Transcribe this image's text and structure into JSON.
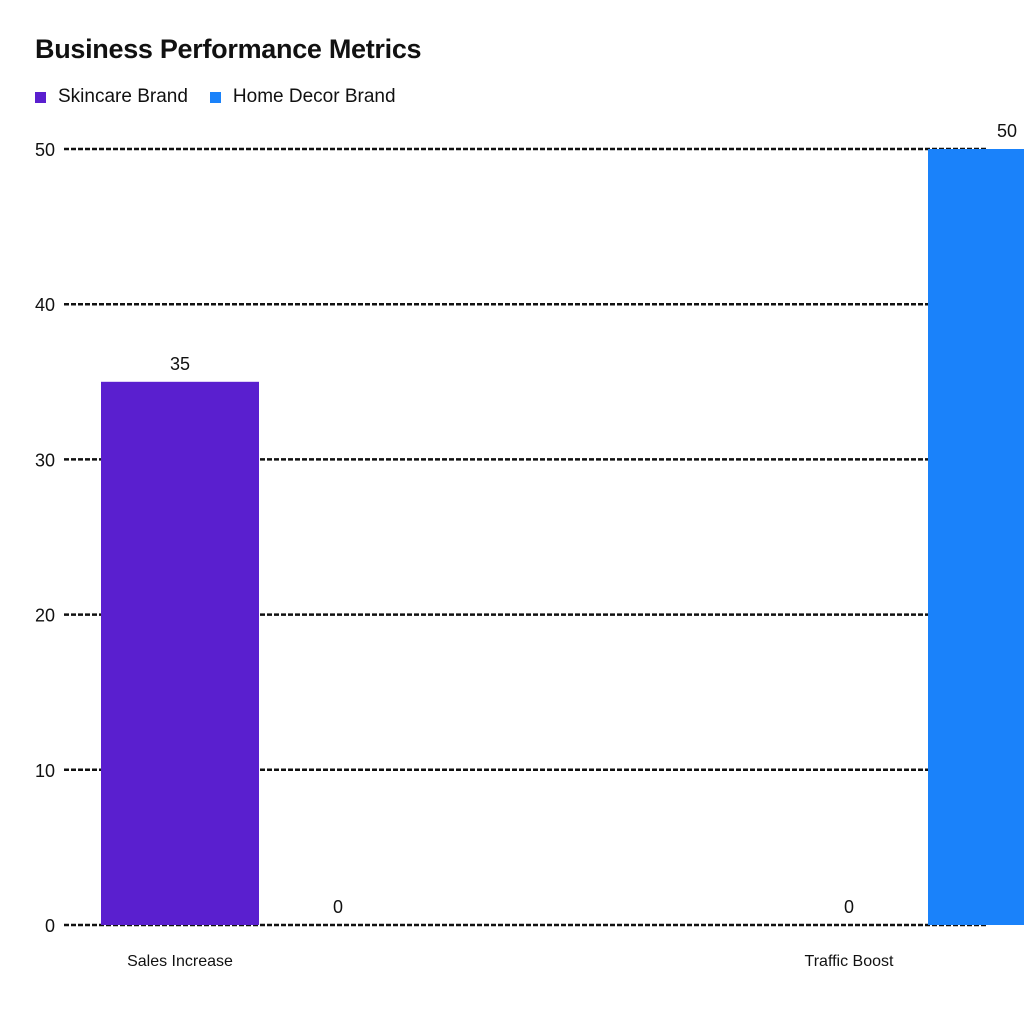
{
  "colors": {
    "skincare": "#5a1fcf",
    "home_decor": "#1a82fa",
    "gridline": "#111111",
    "text": "#111111"
  },
  "chart_data": {
    "type": "bar",
    "title": "Business Performance Metrics",
    "categories": [
      "Sales Increase",
      "Traffic Boost"
    ],
    "series": [
      {
        "name": "Skincare Brand",
        "values": [
          35,
          0
        ],
        "color": "#5a1fcf"
      },
      {
        "name": "Home Decor Brand",
        "values": [
          0,
          50
        ],
        "color": "#1a82fa"
      }
    ],
    "xlabel": "",
    "ylabel": "",
    "ylim": [
      0,
      50
    ],
    "yticks": [
      0,
      10,
      20,
      30,
      40,
      50
    ],
    "grid": true,
    "grid_style": "dashed",
    "legend_position": "top-left",
    "data_labels": true
  }
}
